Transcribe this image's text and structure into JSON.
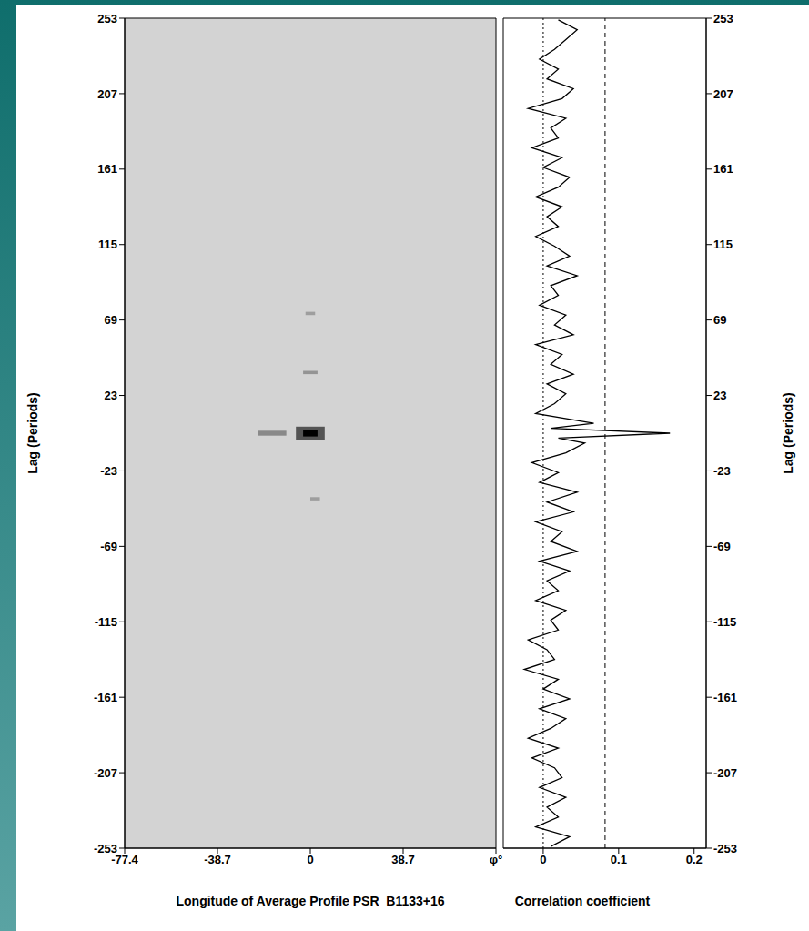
{
  "chart_data": [
    {
      "type": "heatmap",
      "xlabel": "Longitude of Average Profile PSR  B1133+16",
      "ylabel": "Lag (Periods)",
      "xlim": [
        -77.4,
        77.4
      ],
      "xticks": [
        -77.4,
        -38.7,
        0,
        38.7,
        {
          "value": 77.4,
          "label": "φ°"
        }
      ],
      "ylim": [
        -253,
        253
      ],
      "yticks": [
        -253,
        -207,
        -161,
        -115,
        -69,
        -23,
        23,
        69,
        115,
        161,
        207,
        253
      ],
      "cells": [
        {
          "lon": [
            -22,
            -10
          ],
          "lag": [
            -1.5,
            1.5
          ],
          "value": 0.35
        },
        {
          "lon": [
            -6,
            6
          ],
          "lag": [
            -4,
            4
          ],
          "value": 0.6
        },
        {
          "lon": [
            -3,
            3
          ],
          "lag": [
            -2,
            2
          ],
          "value": 1
        },
        {
          "lon": [
            -3,
            3
          ],
          "lag": [
            36,
            38
          ],
          "value": 0.3
        },
        {
          "lon": [
            -2,
            2
          ],
          "lag": [
            72,
            74
          ],
          "value": 0.25
        },
        {
          "lon": [
            0,
            4
          ],
          "lag": [
            -41,
            -39
          ],
          "value": 0.25
        }
      ]
    },
    {
      "type": "line",
      "xlabel": "Correlation coefficient",
      "ylabel": "Lag (Periods)",
      "xlim": [
        -0.053,
        0.216
      ],
      "xticks": [
        0,
        0.1,
        0.2
      ],
      "ylim": [
        -253,
        253
      ],
      "yticks": [
        -253,
        -207,
        -161,
        -115,
        -69,
        -23,
        23,
        69,
        115,
        161,
        207,
        253
      ],
      "color": "#000000",
      "line_style": "solid",
      "reference_lines": [
        {
          "value": 0,
          "line_style": "dotted"
        },
        {
          "value": 0.082,
          "line_style": "dashed"
        }
      ],
      "lags": [
        -252,
        -246,
        -240,
        -234,
        -228,
        -222,
        -216,
        -210,
        -204,
        -198,
        -192,
        -186,
        -180,
        -174,
        -168,
        -162,
        -156,
        -150,
        -144,
        -138,
        -132,
        -126,
        -120,
        -114,
        -108,
        -102,
        -96,
        -90,
        -84,
        -78,
        -72,
        -66,
        -60,
        -54,
        -48,
        -42,
        -36,
        -30,
        -24,
        -18,
        -12,
        -6,
        -3,
        0,
        3,
        6,
        12,
        18,
        24,
        30,
        36,
        42,
        48,
        54,
        60,
        66,
        72,
        78,
        84,
        90,
        96,
        102,
        108,
        114,
        120,
        126,
        132,
        138,
        144,
        150,
        156,
        162,
        168,
        174,
        180,
        186,
        192,
        198,
        204,
        210,
        216,
        222,
        228,
        234,
        240,
        246,
        252
      ],
      "values": [
        0.01,
        0.035,
        -0.01,
        0.02,
        0.005,
        0.03,
        -0.005,
        0.025,
        0.015,
        -0.015,
        0.02,
        -0.02,
        0.01,
        0.03,
        -0.005,
        0.035,
        0.0,
        0.02,
        -0.025,
        0.015,
        0.005,
        -0.02,
        0.02,
        0.01,
        0.03,
        -0.01,
        0.02,
        0.005,
        0.035,
        -0.005,
        0.045,
        0.01,
        0.025,
        -0.01,
        0.04,
        0.005,
        0.045,
        -0.005,
        0.02,
        -0.015,
        0.03,
        0.055,
        0.02,
        0.168,
        0.01,
        0.067,
        -0.01,
        0.015,
        0.03,
        0.005,
        0.04,
        0.01,
        0.025,
        -0.01,
        0.04,
        0.015,
        0.03,
        -0.005,
        0.02,
        0.01,
        0.045,
        0.005,
        0.035,
        0.015,
        -0.01,
        0.02,
        0.005,
        0.025,
        -0.01,
        0.02,
        0.035,
        0.0,
        0.025,
        -0.015,
        0.02,
        0.01,
        0.03,
        -0.02,
        0.025,
        0.04,
        0.005,
        0.02,
        -0.005,
        0.015,
        0.03,
        0.045,
        0.02
      ]
    }
  ]
}
